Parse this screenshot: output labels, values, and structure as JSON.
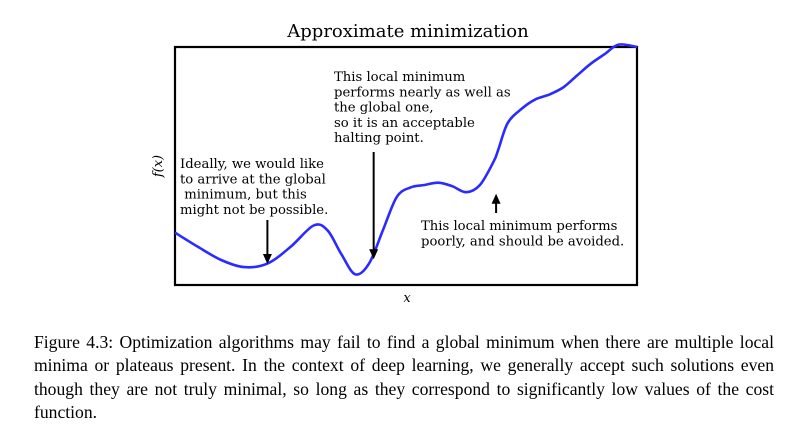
{
  "chart_data": {
    "type": "line",
    "title": "Approximate minimization",
    "xlabel": "x",
    "ylabel": "f(x)",
    "xlim": [
      0,
      10
    ],
    "ylim": [
      0,
      10
    ],
    "grid": false,
    "legend": "none",
    "series": [
      {
        "color": "#2b2bff",
        "x": [
          0,
          0.5,
          1.0,
          1.5,
          2.0,
          2.5,
          3.0,
          3.3,
          3.6,
          3.9,
          4.2,
          4.5,
          4.8,
          5.1,
          5.4,
          5.7,
          6.0,
          6.3,
          6.6,
          6.9,
          7.0,
          7.2,
          7.5,
          7.8,
          8.1,
          8.4,
          8.7,
          9.0,
          9.3,
          9.6,
          10.0
        ],
        "y": [
          2.2,
          1.6,
          1.05,
          0.75,
          0.9,
          1.6,
          2.5,
          2.3,
          1.3,
          0.45,
          0.9,
          2.3,
          3.7,
          4.1,
          4.2,
          4.3,
          4.15,
          3.9,
          4.2,
          5.2,
          5.7,
          6.8,
          7.4,
          7.8,
          8.0,
          8.3,
          8.8,
          9.3,
          9.7,
          10.1,
          10.0
        ]
      }
    ],
    "annotations": [
      {
        "lines": [
          "Ideally, we would like",
          "to arrive at the global",
          " minimum, but this",
          "might not be possible."
        ],
        "point": [
          2.0,
          0.8
        ],
        "direction": "down"
      },
      {
        "lines": [
          "This local minimum",
          "performs nearly as well as",
          "the global one,",
          "so it is an acceptable",
          "halting point."
        ],
        "point": [
          4.3,
          1.0
        ],
        "direction": "down"
      },
      {
        "lines": [
          "This local minimum performs",
          "poorly, and should be avoided."
        ],
        "point": [
          6.95,
          4.0
        ],
        "direction": "up"
      }
    ]
  },
  "caption": "Figure 4.3: Optimization algorithms may fail to find a global minimum when there are multiple local minima or plateaus present. In the context of deep learning, we generally accept such solutions even though they are not truly minimal, so long as they correspond to significantly low values of the cost function."
}
